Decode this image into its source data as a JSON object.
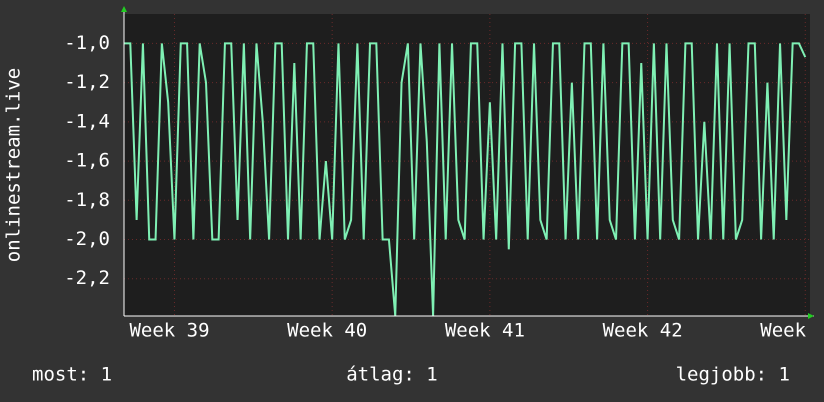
{
  "chart_data": {
    "type": "line",
    "y_label": "onlinestream.live",
    "x": [
      38.68,
      38.72,
      38.76,
      38.8,
      38.84,
      38.88,
      38.92,
      38.96,
      39,
      39.04,
      39.08,
      39.12,
      39.16,
      39.2,
      39.24,
      39.28,
      39.32,
      39.36,
      39.4,
      39.44,
      39.48,
      39.52,
      39.56,
      39.6,
      39.64,
      39.68,
      39.72,
      39.76,
      39.8,
      39.84,
      39.88,
      39.92,
      39.96,
      40,
      40.04,
      40.08,
      40.12,
      40.16,
      40.2,
      40.24,
      40.28,
      40.32,
      40.36,
      40.4,
      40.44,
      40.48,
      40.52,
      40.56,
      40.6,
      40.64,
      40.68,
      40.72,
      40.76,
      40.8,
      40.84,
      40.88,
      40.92,
      40.96,
      41,
      41.04,
      41.08,
      41.12,
      41.16,
      41.2,
      41.24,
      41.28,
      41.32,
      41.36,
      41.4,
      41.44,
      41.48,
      41.52,
      41.56,
      41.6,
      41.64,
      41.68,
      41.72,
      41.76,
      41.8,
      41.84,
      41.88,
      41.92,
      41.96,
      42,
      42.04,
      42.08,
      42.12,
      42.16,
      42.2,
      42.24,
      42.28,
      42.32,
      42.36,
      42.4,
      42.44,
      42.48,
      42.52,
      42.56,
      42.6,
      42.64,
      42.68,
      42.72,
      42.76,
      42.8,
      42.84,
      42.88,
      42.92,
      42.96,
      43
    ],
    "series": [
      {
        "color": "#7ff0b4",
        "values": [
          -1,
          -1,
          -1.9,
          -1,
          -2,
          -2,
          -1,
          -1.3,
          -2,
          -1,
          -1,
          -2,
          -1,
          -1.2,
          -2,
          -2,
          -1,
          -1,
          -1.9,
          -1,
          -2,
          -1,
          -1.4,
          -2,
          -1,
          -1,
          -2,
          -1.1,
          -2,
          -1,
          -1,
          -2,
          -1.6,
          -2,
          -1,
          -2,
          -1.9,
          -1,
          -2,
          -1,
          -1,
          -2,
          -2,
          -2.39,
          -1.2,
          -1,
          -2,
          -1,
          -1.5,
          -2.39,
          -1,
          -2,
          -1,
          -1.9,
          -2,
          -1,
          -1,
          -2,
          -1.3,
          -2,
          -1,
          -2.05,
          -1,
          -1,
          -2,
          -1,
          -1.9,
          -2,
          -1,
          -1,
          -2,
          -1.2,
          -2,
          -1,
          -1,
          -2,
          -1,
          -1.9,
          -2,
          -1,
          -1,
          -2,
          -1.1,
          -2,
          -1,
          -2,
          -1,
          -1.9,
          -2,
          -1,
          -1,
          -2,
          -1.4,
          -2,
          -1,
          -2,
          -1,
          -2,
          -1.9,
          -1,
          -1,
          -2,
          -1.2,
          -2,
          -1,
          -1.9,
          -1,
          -1,
          -1.07
        ]
      }
    ],
    "xlim": [
      38.68,
      43.03
    ],
    "xticks": [
      {
        "value": 39,
        "label": "Week 39"
      },
      {
        "value": 40,
        "label": "Week 40"
      },
      {
        "value": 41,
        "label": "Week 41"
      },
      {
        "value": 42,
        "label": "Week 42"
      },
      {
        "value": 43,
        "label": "Week"
      }
    ],
    "ylim": [
      -2.39,
      -0.85
    ],
    "yticks": [
      {
        "value": -1,
        "label": "-1,0"
      },
      {
        "value": -1.2,
        "label": "-1,2"
      },
      {
        "value": -1.4,
        "label": "-1,4"
      },
      {
        "value": -1.6,
        "label": "-1,6"
      },
      {
        "value": -1.8,
        "label": "-1,8"
      },
      {
        "value": -2,
        "label": "-2,0"
      },
      {
        "value": -2.2,
        "label": "-2,2"
      }
    ],
    "grid": true,
    "footer": [
      "most: 1",
      "átlag: 1",
      "legjobb: 1"
    ]
  }
}
